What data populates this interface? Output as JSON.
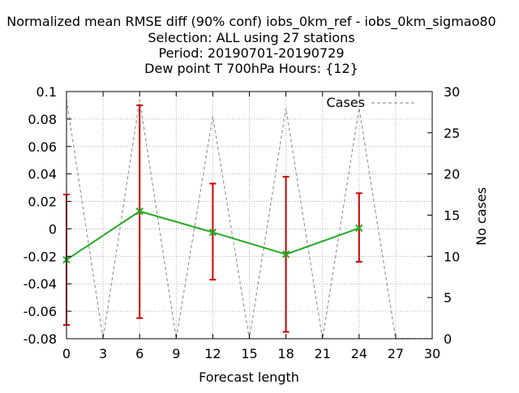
{
  "chart_data": {
    "type": "line",
    "title_lines": [
      "Normalized mean RMSE diff (90% conf) iobs_0km_ref - iobs_0km_sigmao80",
      "Selection: ALL using    27 stations",
      "Period: 20190701-20190729",
      "Dew point T 700hPa   Hours: {12}"
    ],
    "xlabel": "Forecast length",
    "ylabel": "",
    "y2label": "No cases",
    "xlim": [
      0,
      30
    ],
    "ylim": [
      -0.08,
      0.1
    ],
    "y2lim": [
      0,
      30
    ],
    "x_ticks": [
      "0",
      "3",
      "6",
      "9",
      "12",
      "15",
      "18",
      "21",
      "24",
      "27",
      "30"
    ],
    "y_ticks": [
      "-0.08",
      "-0.06",
      "-0.04",
      "-0.02",
      "0",
      "0.02",
      "0.04",
      "0.06",
      "0.08",
      "0.1"
    ],
    "y2_ticks": [
      "0",
      "5",
      "10",
      "15",
      "20",
      "25",
      "30"
    ],
    "grid": true,
    "legend_position": "top-right",
    "series": [
      {
        "name": "",
        "axis": "y",
        "color": "#22aa22",
        "style": "solid line with x markers",
        "x": [
          0,
          6,
          12,
          18,
          24
        ],
        "y": [
          -0.0225,
          0.0128,
          -0.0025,
          -0.0185,
          0.0005
        ]
      },
      {
        "name": "Cases",
        "axis": "y2",
        "color": "#999999",
        "style": "dashed",
        "x": [
          0,
          3,
          6,
          9,
          12,
          15,
          18,
          21,
          24,
          27,
          30
        ],
        "y": [
          29,
          0,
          29,
          0,
          27,
          0,
          28,
          0,
          28,
          0,
          0
        ]
      }
    ],
    "error_bars": {
      "color": "#cc0000",
      "x": [
        0,
        6,
        12,
        18,
        24
      ],
      "low": [
        -0.07,
        -0.065,
        -0.037,
        -0.075,
        -0.024
      ],
      "high": [
        0.025,
        0.09,
        0.033,
        0.038,
        0.026
      ]
    }
  }
}
